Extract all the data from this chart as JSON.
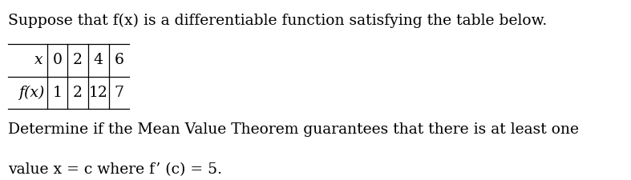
{
  "line1": "Suppose that f(x) is a differentiable function satisfying the table below.",
  "table_x_label": "x",
  "table_fx_label": "f(x)",
  "table_x_values": [
    "0",
    "2",
    "4",
    "6"
  ],
  "table_fx_values": [
    "1",
    "2",
    "12",
    "7"
  ],
  "line3": "Determine if the Mean Value Theorem guarantees that there is at least one",
  "line4": "value x = c where f’ (c) = 5.",
  "bg_color": "#ffffff",
  "text_color": "#000000",
  "font_size": 13.5,
  "fig_width": 7.87,
  "fig_height": 2.25
}
